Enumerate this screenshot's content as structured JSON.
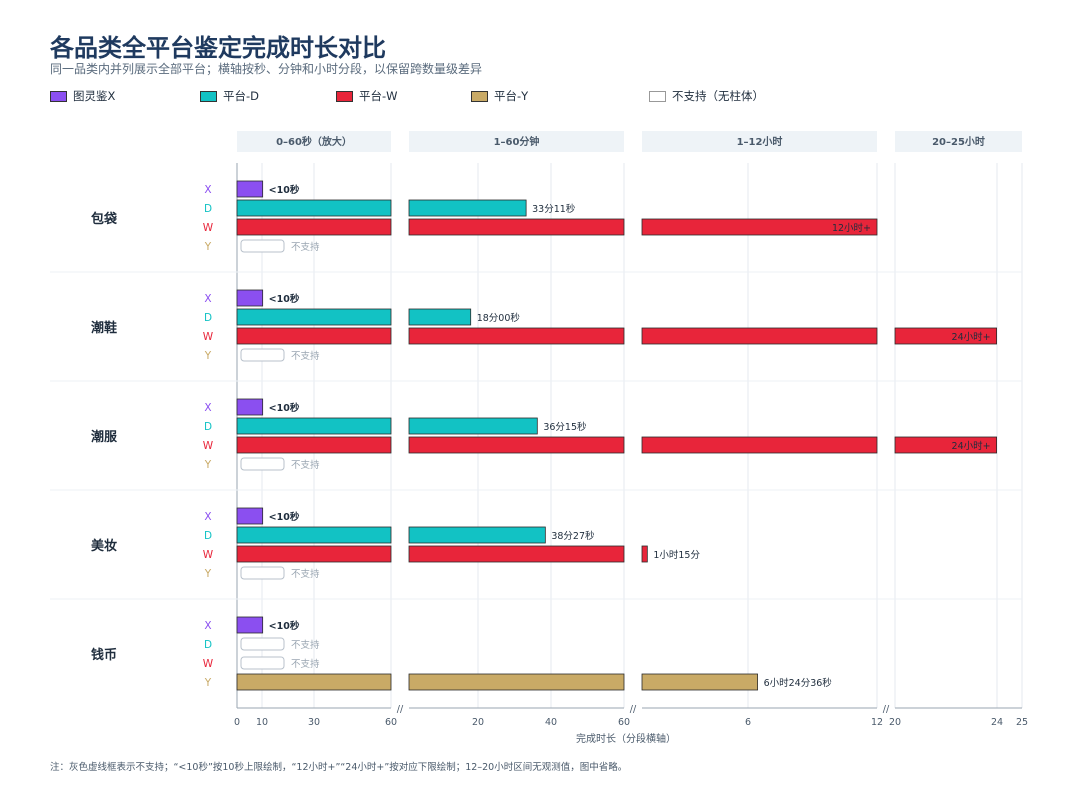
{
  "title": "各品类全平台鉴定完成时长对比",
  "subtitle": "同一品类内并列展示全部平台；横轴按秒、分钟和小时分段，以保留跨数量级差异",
  "legend": [
    {
      "key": "X",
      "label": "图灵鉴X",
      "color": "#8b4ff0"
    },
    {
      "key": "D",
      "label": "平台-D",
      "color": "#12c2c4"
    },
    {
      "key": "W",
      "label": "平台-W",
      "color": "#e8253a"
    },
    {
      "key": "Y",
      "label": "平台-Y",
      "color": "#c9aa66"
    },
    {
      "key": "NA",
      "label": "不支持（无柱体）",
      "color": "#ffffff"
    }
  ],
  "footnote": "注：灰色虚线框表示不支持；“<10秒”按10秒上限绘制，“12小时+”“24小时+”按对应下限绘制；12–20小时区间无观测值，图中省略。",
  "chart_data": {
    "type": "bar",
    "orientation": "horizontal",
    "x_axis": {
      "title": "完成时长（分段横轴）",
      "segments": [
        {
          "label": "0–60秒（放大）",
          "unit": "seconds",
          "range": [
            0,
            60
          ],
          "ticks": [
            "0",
            "10",
            "30",
            "60"
          ]
        },
        {
          "label": "1–60分钟",
          "unit": "minutes",
          "range": [
            1,
            60
          ],
          "ticks": [
            "20",
            "40",
            "60"
          ]
        },
        {
          "label": "1–12小时",
          "unit": "hours",
          "range": [
            1,
            12
          ],
          "ticks": [
            "6",
            "12"
          ]
        },
        {
          "label": "20–25小时",
          "unit": "hours",
          "range": [
            20,
            25
          ],
          "ticks": [
            "20",
            "24",
            "25"
          ]
        }
      ]
    },
    "categories": [
      "包袋",
      "潮鞋",
      "潮服",
      "美妆",
      "钱币"
    ],
    "platforms": [
      "X",
      "D",
      "W",
      "Y"
    ],
    "not_supported_label": "不支持",
    "values_seconds": {
      "包袋": {
        "X": 10,
        "D": 1991,
        "W": 43200,
        "Y": null
      },
      "潮鞋": {
        "X": 10,
        "D": 1080,
        "W": 86400,
        "Y": null
      },
      "潮服": {
        "X": 10,
        "D": 2175,
        "W": 86400,
        "Y": null
      },
      "美妆": {
        "X": 10,
        "D": 2307,
        "W": 4500,
        "Y": null
      },
      "钱币": {
        "X": 10,
        "D": null,
        "W": null,
        "Y": 23076
      }
    },
    "data_labels": {
      "包袋": {
        "X": "<10秒",
        "D": "33分11秒",
        "W": "12小时+"
      },
      "潮鞋": {
        "X": "<10秒",
        "D": "18分00秒",
        "W": "24小时+"
      },
      "潮服": {
        "X": "<10秒",
        "D": "36分15秒",
        "W": "24小时+"
      },
      "美妆": {
        "X": "<10秒",
        "D": "38分27秒",
        "W": "1小时15分"
      },
      "钱币": {
        "X": "<10秒",
        "Y": "6小时24分36秒"
      }
    }
  }
}
